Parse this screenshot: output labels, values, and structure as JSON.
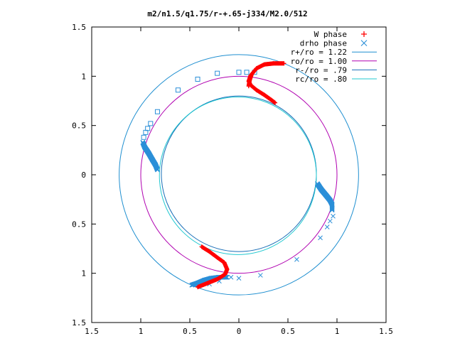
{
  "chart_data": {
    "type": "scatter",
    "title": "m2/n1.5/q1.75/r-+.65-j334/M2.0/512",
    "xlim": [
      -1.5,
      1.5
    ],
    "ylim": [
      -1.5,
      1.5
    ],
    "x_ticks": [
      {
        "value": -1.5,
        "label": "1.5"
      },
      {
        "value": -1.0,
        "label": "1"
      },
      {
        "value": -0.5,
        "label": "0.5"
      },
      {
        "value": 0,
        "label": "0"
      },
      {
        "value": 0.5,
        "label": "0.5"
      },
      {
        "value": 1.0,
        "label": "1"
      },
      {
        "value": 1.5,
        "label": "1.5"
      }
    ],
    "y_ticks": [
      {
        "value": 1.5,
        "label": "1.5"
      },
      {
        "value": 1.0,
        "label": "1"
      },
      {
        "value": 0.5,
        "label": "0.5"
      },
      {
        "value": 0,
        "label": "0"
      },
      {
        "value": -0.5,
        "label": "0.5"
      },
      {
        "value": -1.0,
        "label": "1"
      },
      {
        "value": -1.5,
        "label": "1.5"
      }
    ],
    "grid": false,
    "legend_position": "top-right",
    "legend": [
      {
        "label": "W phase",
        "marker": "plus",
        "color": "#ff0000"
      },
      {
        "label": "drho phase",
        "marker": "cross",
        "color": "#2b8fd8"
      },
      {
        "label": "r+/ro = 1.22",
        "marker": "line",
        "color": "#1f8fd0"
      },
      {
        "label": "ro/ro = 1.00",
        "marker": "line",
        "color": "#b000b0"
      },
      {
        "label": "r-/ro = .79",
        "marker": "line",
        "color": "#1a6fb8"
      },
      {
        "label": "rc/ro = .80",
        "marker": "line",
        "color": "#20c8d0"
      }
    ],
    "circles": [
      {
        "name": "r+/ro = 1.22",
        "radius": 1.22,
        "color": "#1f8fd0"
      },
      {
        "name": "ro/ro = 1.00",
        "radius": 1.0,
        "color": "#b000b0"
      },
      {
        "name": "r-/ro = .79",
        "radius": 0.79,
        "color": "#1a6fb8",
        "cx": 0.0,
        "cy": 0.01
      },
      {
        "name": "rc/ro = .80",
        "radius": 0.8,
        "color": "#20c8d0",
        "cx": -0.01,
        "cy": -0.01
      }
    ],
    "w_phase_curves": [
      {
        "color": "#ff0000",
        "points": [
          [
            0.1,
            0.9
          ],
          [
            0.11,
            0.96
          ],
          [
            0.13,
            1.02
          ],
          [
            0.18,
            1.08
          ],
          [
            0.26,
            1.12
          ],
          [
            0.35,
            1.13
          ],
          [
            0.46,
            1.13
          ]
        ]
      },
      {
        "color": "#ff0000",
        "points": [
          [
            0.12,
            1.01
          ],
          [
            0.1,
            0.95
          ],
          [
            0.12,
            0.91
          ],
          [
            0.18,
            0.86
          ],
          [
            0.26,
            0.81
          ],
          [
            0.33,
            0.76
          ],
          [
            0.37,
            0.73
          ]
        ]
      },
      {
        "color": "#ff0000",
        "points": [
          [
            -0.38,
            -0.73
          ],
          [
            -0.3,
            -0.78
          ],
          [
            -0.22,
            -0.84
          ],
          [
            -0.15,
            -0.89
          ],
          [
            -0.12,
            -0.96
          ],
          [
            -0.14,
            -1.01
          ],
          [
            -0.22,
            -1.06
          ],
          [
            -0.32,
            -1.1
          ],
          [
            -0.42,
            -1.14
          ]
        ]
      }
    ],
    "drho_phase_curves": [
      {
        "color": "#2b8fd8",
        "points": [
          [
            -0.98,
            0.33
          ],
          [
            -0.96,
            0.28
          ],
          [
            -0.92,
            0.22
          ],
          [
            -0.88,
            0.15
          ],
          [
            -0.85,
            0.1
          ],
          [
            -0.83,
            0.05
          ]
        ]
      },
      {
        "color": "#2b8fd8",
        "points": [
          [
            0.8,
            -0.09
          ],
          [
            0.84,
            -0.15
          ],
          [
            0.89,
            -0.21
          ],
          [
            0.93,
            -0.26
          ],
          [
            0.95,
            -0.3
          ],
          [
            0.95,
            -0.36
          ]
        ]
      },
      {
        "color": "#2b8fd8",
        "points": [
          [
            -0.48,
            -1.12
          ],
          [
            -0.42,
            -1.1
          ],
          [
            -0.35,
            -1.07
          ],
          [
            -0.28,
            -1.05
          ],
          [
            -0.2,
            -1.04
          ],
          [
            -0.12,
            -1.04
          ]
        ]
      }
    ],
    "drho_square_points": [
      [
        -0.97,
        0.38
      ],
      [
        -0.95,
        0.43
      ],
      [
        -0.93,
        0.47
      ],
      [
        -0.9,
        0.52
      ],
      [
        -0.83,
        0.64
      ],
      [
        -0.62,
        0.86
      ],
      [
        -0.42,
        0.97
      ],
      [
        -0.22,
        1.03
      ],
      [
        0.0,
        1.04
      ],
      [
        0.08,
        1.04
      ],
      [
        0.16,
        1.04
      ]
    ],
    "drho_cross_points": [
      [
        0.96,
        -0.42
      ],
      [
        0.93,
        -0.47
      ],
      [
        0.9,
        -0.53
      ],
      [
        0.83,
        -0.64
      ],
      [
        0.59,
        -0.86
      ],
      [
        0.22,
        -1.02
      ],
      [
        0.0,
        -1.05
      ],
      [
        -0.08,
        -1.04
      ],
      [
        -0.2,
        -1.08
      ],
      [
        -0.3,
        -1.11
      ]
    ]
  }
}
